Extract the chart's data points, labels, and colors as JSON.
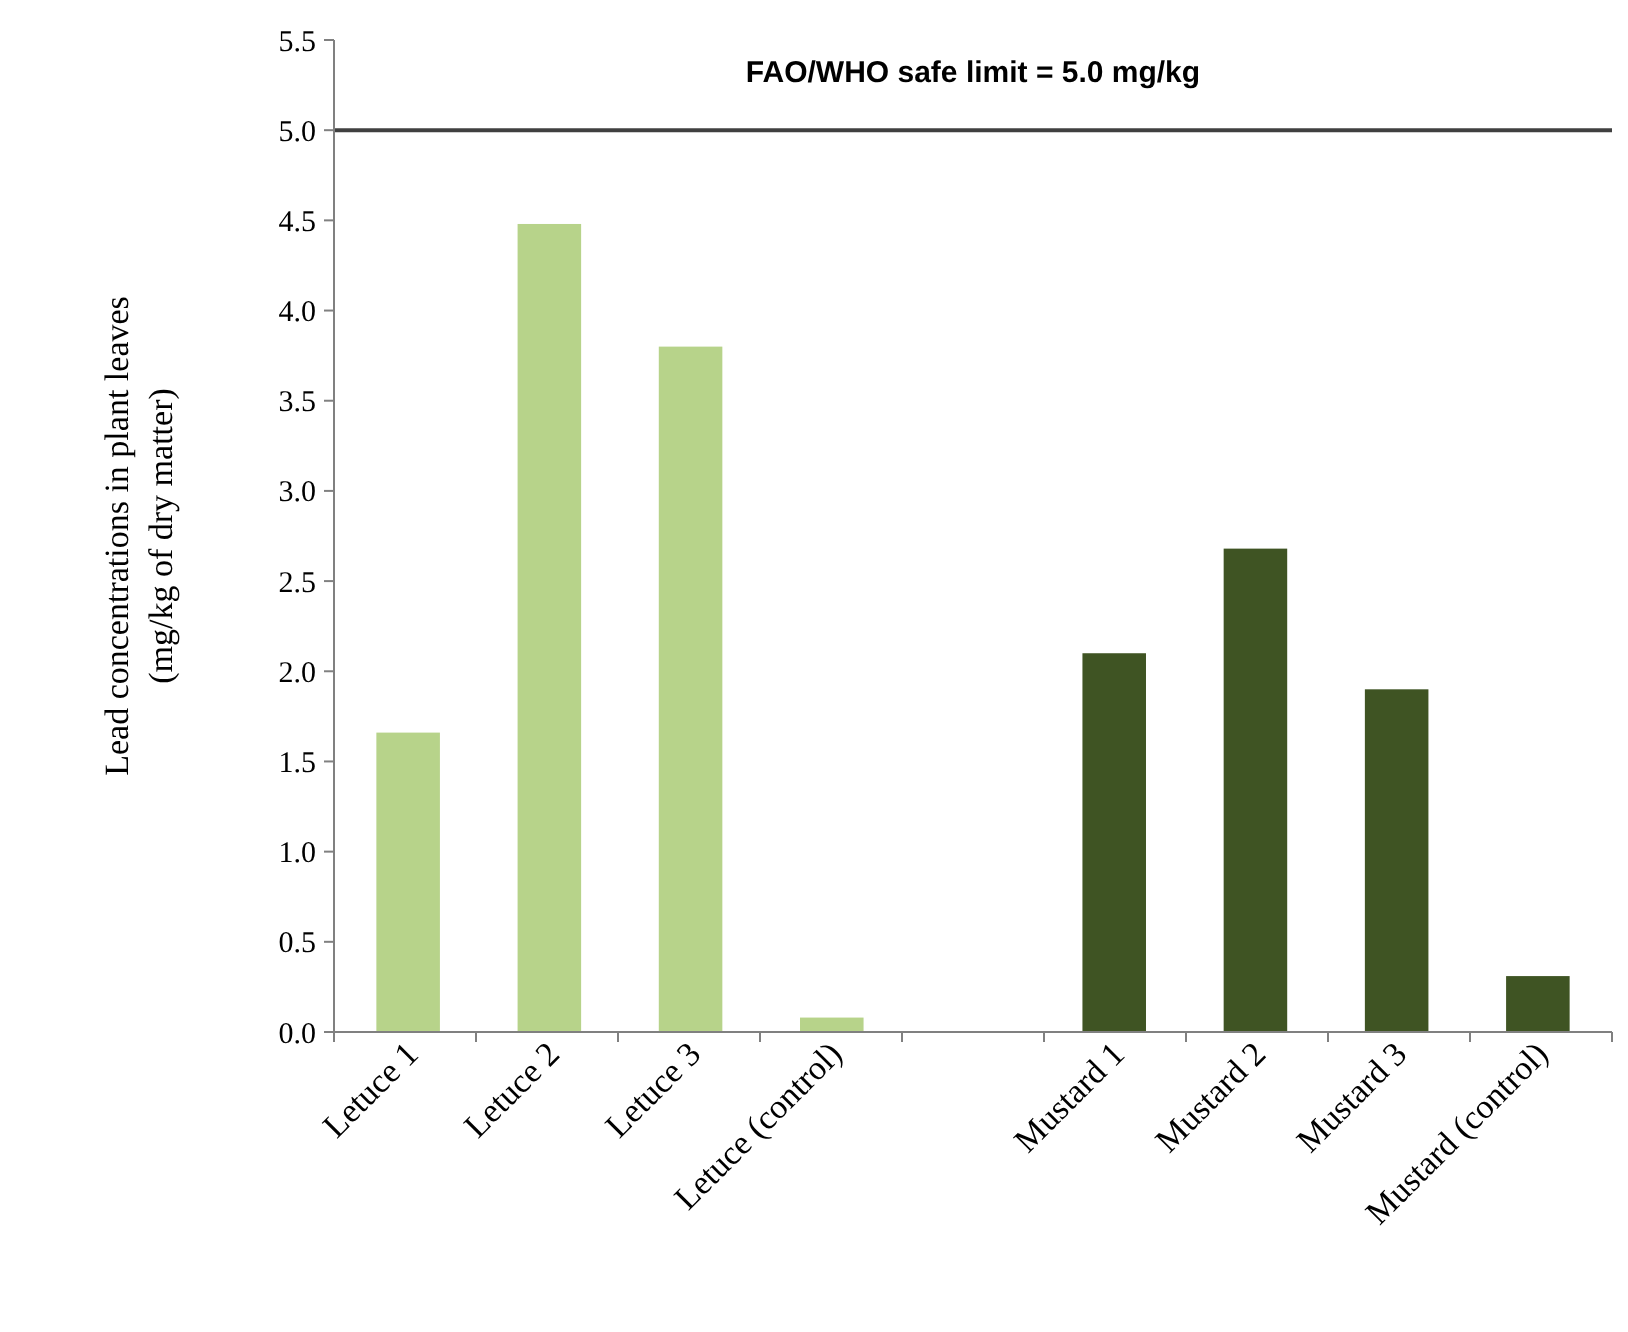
{
  "chart_data": {
    "type": "bar",
    "ylabel": "Lead concentrations  in plant leaves\n(mg/kg  of dry matter)",
    "categories": [
      "Letuce 1",
      "Letuce 2",
      "Letuce 3",
      "Letuce (control)",
      null,
      "Mustard 1",
      "Mustard 2",
      "Mustard 3",
      "Mustard (control)"
    ],
    "values": [
      1.66,
      4.48,
      3.8,
      0.08,
      null,
      2.1,
      2.68,
      1.9,
      0.31
    ],
    "colors": [
      "#b7d38a",
      "#b7d38a",
      "#b7d38a",
      "#b7d38a",
      null,
      "#3f5423",
      "#3f5423",
      "#3f5423",
      "#3f5423"
    ],
    "ylim": [
      0,
      5.5
    ],
    "yticks": [
      {
        "value": 0,
        "label": "0.0"
      },
      0.5,
      {
        "value": 1,
        "label": "1.0"
      },
      1.5,
      {
        "value": 2,
        "label": "2.0"
      },
      2.5,
      {
        "value": 3,
        "label": "3.0"
      },
      3.5,
      {
        "value": 4,
        "label": "4.0"
      },
      4.5,
      {
        "value": 5,
        "label": "5.0"
      },
      5.5
    ],
    "ref_lines": [
      {
        "axis": "y",
        "value": 5,
        "label": "FAO/WHO safe limit = 5.0 mg/kg",
        "color": "#404040"
      }
    ],
    "grid": false
  }
}
